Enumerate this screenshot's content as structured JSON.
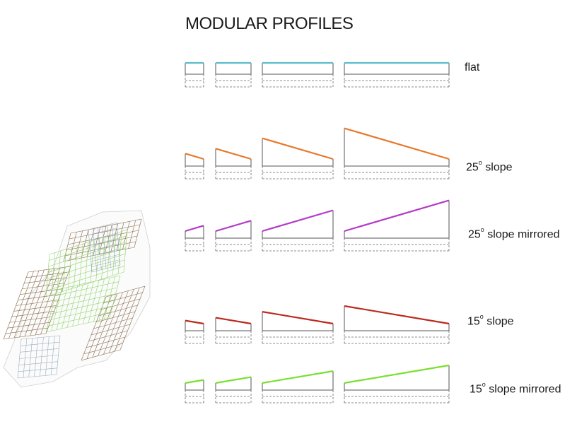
{
  "title": "MODULAR PROFILES",
  "rows": [
    {
      "id": "flat",
      "label": "flat",
      "deg": "",
      "slope_deg": 0,
      "mirrored": false,
      "color": "#5bbccc"
    },
    {
      "id": "slope-25",
      "label": "slope",
      "deg": "25",
      "slope_deg": 25,
      "mirrored": false,
      "color": "#e8782a"
    },
    {
      "id": "slope-25-mirrored",
      "label": "slope mirrored",
      "deg": "25",
      "slope_deg": 25,
      "mirrored": true,
      "color": "#b43ac8"
    },
    {
      "id": "slope-15",
      "label": "slope",
      "deg": "15",
      "slope_deg": 15,
      "mirrored": false,
      "color": "#bb2a1e"
    },
    {
      "id": "slope-15-mirrored",
      "label": "slope mirrored",
      "deg": "15",
      "slope_deg": 15,
      "mirrored": true,
      "color": "#7ae030"
    }
  ],
  "degree_symbol": "o",
  "module_count": 4,
  "colors": {
    "outline": "#555555",
    "dashed": "#666666",
    "model_brown": "#8a6a4a",
    "model_green": "#8fd66a",
    "model_blue": "#9aaebe"
  }
}
